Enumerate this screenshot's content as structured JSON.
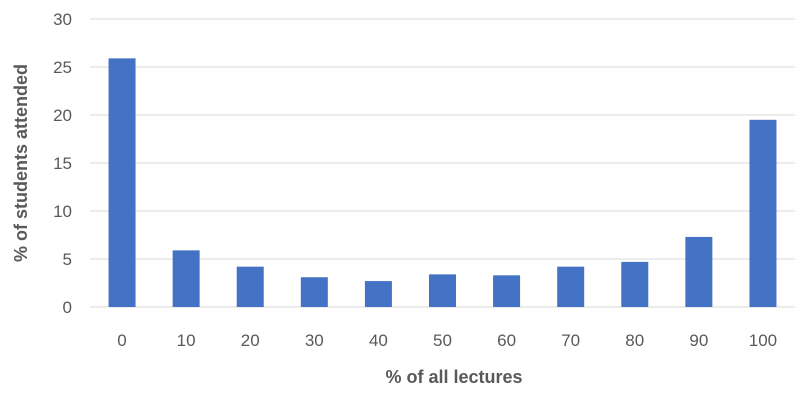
{
  "chart_data": {
    "type": "bar",
    "title": "",
    "xlabel": "% of all lectures",
    "ylabel": "% of students attended",
    "categories": [
      "0",
      "10",
      "20",
      "30",
      "40",
      "50",
      "60",
      "70",
      "80",
      "90",
      "100"
    ],
    "values": [
      25.9,
      5.9,
      4.2,
      3.1,
      2.7,
      3.4,
      3.3,
      4.2,
      4.7,
      7.3,
      19.5
    ],
    "ylim": [
      0,
      30
    ],
    "yticks": [
      "0",
      "5",
      "10",
      "15",
      "20",
      "25",
      "30"
    ],
    "grid": true,
    "legend": "none",
    "bar_color": "#4472C4",
    "grid_color": "#D9D9D9"
  }
}
